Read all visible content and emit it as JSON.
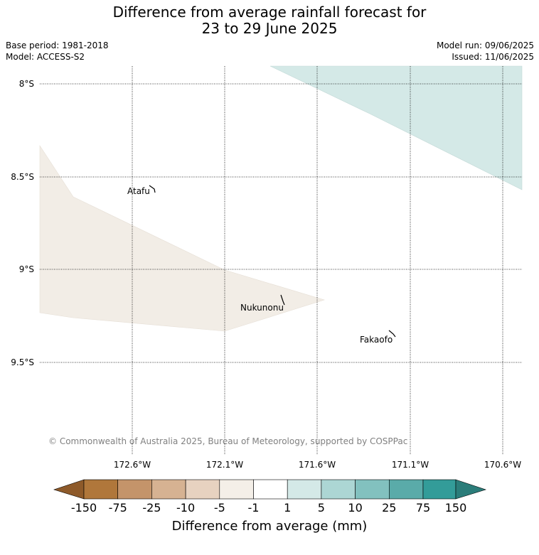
{
  "title": {
    "line1": "Difference from average rainfall forecast for",
    "line2": "23 to 29 June 2025"
  },
  "meta": {
    "base_period": "Base period: 1981-2018",
    "model": "Model: ACCESS-S2",
    "model_run": "Model run: 09/06/2025",
    "issued": "Issued: 11/06/2025"
  },
  "map": {
    "lat_labels": [
      "8°S",
      "8.5°S",
      "9°S",
      "9.5°S"
    ],
    "lon_labels": [
      "172.6°W",
      "172.1°W",
      "171.6°W",
      "171.1°W",
      "170.6°W"
    ],
    "islands": {
      "atafu": "Atafu",
      "nukunonu": "Nukunonu",
      "fakaofo": "Fakaofo"
    },
    "copyright": "© Commonwealth of Australia 2025, Bureau of Meteorology, supported by COSPPac",
    "colors": {
      "wet_region": "#d4e9e7",
      "dry_region": "#f2ede6"
    }
  },
  "colorbar": {
    "labels": [
      "-150",
      "-75",
      "-25",
      "-10",
      "-5",
      "-1",
      "1",
      "5",
      "10",
      "25",
      "75",
      "150"
    ],
    "colors": [
      "#8e5a2a",
      "#b0773b",
      "#c4946a",
      "#d6b292",
      "#e7d2c0",
      "#f4efe8",
      "#ffffff",
      "#d4e9e7",
      "#acd6d4",
      "#82c1bf",
      "#5aaba9",
      "#339c99",
      "#2b7d7a"
    ],
    "title": "Difference from average (mm)"
  }
}
